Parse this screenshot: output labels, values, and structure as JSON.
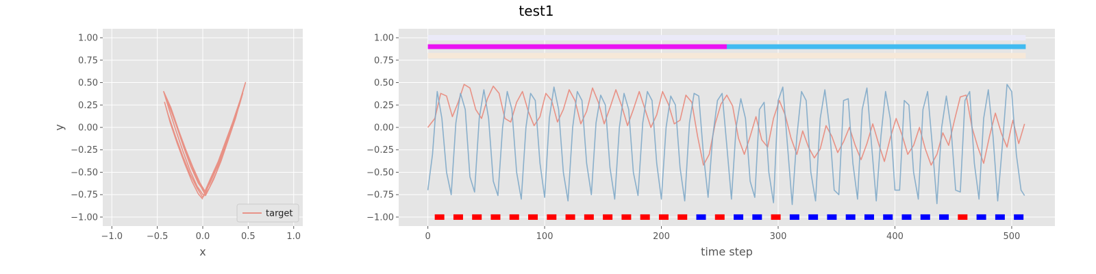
{
  "figure": {
    "title": "test1"
  },
  "chart_data": [
    {
      "type": "line",
      "title": "",
      "xlabel": "x",
      "ylabel": "y",
      "xlim": [
        -1.1,
        1.1
      ],
      "ylim": [
        -1.1,
        1.1
      ],
      "xticks": [
        -1.0,
        -0.5,
        0.0,
        0.5,
        1.0
      ],
      "yticks": [
        -1.0,
        -0.75,
        -0.5,
        -0.25,
        0.0,
        0.25,
        0.5,
        0.75,
        1.0
      ],
      "xtick_labels": [
        "−1.0",
        "−0.5",
        "0.0",
        "0.5",
        "1.0"
      ],
      "ytick_labels": [
        "−1.00",
        "−0.75",
        "−0.50",
        "−0.25",
        "0.00",
        "0.25",
        "0.50",
        "0.75",
        "1.00"
      ],
      "grid": true,
      "legend": {
        "placement": "bottom-right",
        "entries": [
          "target"
        ]
      },
      "series": [
        {
          "name": "target",
          "color": "#e8877a",
          "x": [
            0.0,
            -0.05,
            -0.12,
            -0.2,
            -0.28,
            -0.36,
            -0.42,
            -0.38,
            -0.3,
            -0.22,
            -0.14,
            -0.06,
            0.0,
            0.07,
            0.15,
            0.23,
            0.31,
            0.38,
            0.44,
            0.4,
            0.32,
            0.24,
            0.16,
            0.08,
            0.01,
            -0.06,
            -0.14,
            -0.22,
            -0.3,
            -0.37,
            -0.43,
            -0.35,
            -0.27,
            -0.19,
            -0.11,
            -0.03,
            0.04,
            0.12,
            0.2,
            0.28,
            0.36,
            0.42,
            0.47,
            0.41,
            0.33,
            0.25,
            0.17,
            0.09,
            0.02,
            -0.05,
            -0.13,
            -0.21,
            -0.29,
            -0.36,
            -0.41,
            -0.34,
            -0.26,
            -0.18,
            -0.1,
            -0.03,
            0.03,
            0.11,
            0.19,
            0.27,
            0.35,
            0.41,
            0.38,
            0.3,
            0.22,
            0.14,
            0.06
          ],
          "y": [
            -0.8,
            -0.74,
            -0.6,
            -0.4,
            -0.18,
            0.06,
            0.28,
            0.14,
            -0.1,
            -0.32,
            -0.52,
            -0.68,
            -0.78,
            -0.68,
            -0.5,
            -0.28,
            -0.04,
            0.2,
            0.38,
            0.24,
            0.0,
            -0.22,
            -0.44,
            -0.62,
            -0.76,
            -0.66,
            -0.48,
            -0.26,
            -0.02,
            0.2,
            0.4,
            0.22,
            -0.02,
            -0.24,
            -0.44,
            -0.62,
            -0.74,
            -0.58,
            -0.38,
            -0.14,
            0.1,
            0.32,
            0.5,
            0.3,
            0.06,
            -0.16,
            -0.38,
            -0.56,
            -0.72,
            -0.62,
            -0.44,
            -0.22,
            0.02,
            0.22,
            0.34,
            0.16,
            -0.06,
            -0.28,
            -0.48,
            -0.64,
            -0.76,
            -0.6,
            -0.4,
            -0.16,
            0.08,
            0.3,
            0.2,
            -0.04,
            -0.26,
            -0.46,
            -0.64
          ]
        }
      ]
    },
    {
      "type": "line",
      "title": "",
      "xlabel": "time step",
      "ylabel": "",
      "xlim": [
        -25,
        537
      ],
      "ylim": [
        -1.1,
        1.1
      ],
      "xticks": [
        0,
        100,
        200,
        300,
        400,
        500
      ],
      "yticks": [
        -1.0,
        -0.75,
        -0.5,
        -0.25,
        0.0,
        0.25,
        0.5,
        0.75,
        1.0
      ],
      "xtick_labels": [
        "0",
        "100",
        "200",
        "300",
        "400",
        "500"
      ],
      "ytick_labels": [
        "−1.00",
        "−0.75",
        "−0.50",
        "−0.25",
        "0.00",
        "0.25",
        "0.50",
        "0.75",
        "1.00"
      ],
      "grid": true,
      "background_bands": [
        {
          "y": 1.0,
          "x_range": [
            0,
            512
          ],
          "color": "#ebeaf8"
        },
        {
          "y": 0.8,
          "x_range": [
            0,
            512
          ],
          "color": "#f6e8d8"
        }
      ],
      "phase_bar": {
        "y": 0.9,
        "segments": [
          {
            "x_range": [
              0,
              256
            ],
            "color": "#ea13f2"
          },
          {
            "x_range": [
              256,
              512
            ],
            "color": "#41bbf1"
          }
        ]
      },
      "markers": {
        "y": -1.0,
        "x": [
          10,
          26,
          42,
          58,
          74,
          90,
          106,
          122,
          138,
          154,
          170,
          186,
          202,
          218,
          234,
          250,
          266,
          282,
          298,
          314,
          330,
          346,
          362,
          378,
          394,
          410,
          426,
          442,
          458,
          474,
          490,
          506
        ],
        "colors": [
          "#ff0000",
          "#ff0000",
          "#ff0000",
          "#ff0000",
          "#ff0000",
          "#ff0000",
          "#ff0000",
          "#ff0000",
          "#ff0000",
          "#ff0000",
          "#ff0000",
          "#ff0000",
          "#ff0000",
          "#ff0000",
          "#0000ff",
          "#ff0000",
          "#0000ff",
          "#0000ff",
          "#ff0000",
          "#0000ff",
          "#0000ff",
          "#0000ff",
          "#0000ff",
          "#0000ff",
          "#0000ff",
          "#0000ff",
          "#0000ff",
          "#0000ff",
          "#ff0000",
          "#0000ff",
          "#0000ff",
          "#0000ff"
        ]
      },
      "series": [
        {
          "name": "",
          "color": "#e8877a",
          "x": [
            0,
            6,
            11,
            16,
            21,
            26,
            31,
            36,
            41,
            46,
            51,
            56,
            61,
            66,
            71,
            76,
            81,
            86,
            91,
            96,
            101,
            106,
            111,
            116,
            121,
            126,
            131,
            136,
            141,
            146,
            151,
            156,
            161,
            166,
            171,
            176,
            181,
            186,
            191,
            196,
            201,
            206,
            211,
            216,
            221,
            226,
            231,
            236,
            241,
            246,
            251,
            256,
            261,
            266,
            271,
            276,
            281,
            286,
            291,
            296,
            301,
            306,
            311,
            316,
            321,
            326,
            331,
            336,
            341,
            346,
            351,
            356,
            361,
            366,
            371,
            376,
            381,
            386,
            391,
            396,
            401,
            406,
            411,
            416,
            421,
            426,
            431,
            436,
            441,
            446,
            451,
            456,
            461,
            466,
            471,
            476,
            481,
            486,
            491,
            496,
            501,
            506,
            511
          ],
          "y": [
            0.0,
            0.1,
            0.38,
            0.35,
            0.12,
            0.28,
            0.48,
            0.44,
            0.2,
            0.1,
            0.32,
            0.46,
            0.38,
            0.1,
            0.06,
            0.28,
            0.4,
            0.18,
            0.02,
            0.12,
            0.38,
            0.3,
            0.06,
            0.2,
            0.42,
            0.3,
            0.04,
            0.18,
            0.44,
            0.28,
            0.04,
            0.22,
            0.42,
            0.24,
            0.02,
            0.2,
            0.4,
            0.2,
            0.0,
            0.14,
            0.4,
            0.26,
            0.04,
            0.08,
            0.36,
            0.28,
            -0.1,
            -0.42,
            -0.3,
            0.04,
            0.26,
            0.36,
            0.24,
            -0.12,
            -0.3,
            -0.1,
            0.12,
            -0.14,
            -0.22,
            0.1,
            0.3,
            0.14,
            -0.12,
            -0.3,
            -0.04,
            -0.22,
            -0.34,
            -0.24,
            0.02,
            -0.1,
            -0.28,
            -0.16,
            0.0,
            -0.2,
            -0.36,
            -0.18,
            0.04,
            -0.18,
            -0.38,
            -0.12,
            0.1,
            -0.08,
            -0.3,
            -0.2,
            0.0,
            -0.24,
            -0.42,
            -0.3,
            -0.06,
            -0.2,
            0.08,
            0.34,
            0.36,
            0.0,
            -0.22,
            -0.4,
            -0.1,
            0.16,
            -0.06,
            -0.22,
            0.08,
            -0.18,
            0.04
          ]
        },
        {
          "name": "",
          "color": "#7ea8c8",
          "x": [
            0,
            4,
            8,
            12,
            16,
            20,
            24,
            28,
            32,
            36,
            40,
            44,
            48,
            52,
            56,
            60,
            64,
            68,
            72,
            76,
            80,
            84,
            88,
            92,
            96,
            100,
            104,
            108,
            112,
            116,
            120,
            124,
            128,
            132,
            136,
            140,
            144,
            148,
            152,
            156,
            160,
            164,
            168,
            172,
            176,
            180,
            184,
            188,
            192,
            196,
            200,
            204,
            208,
            212,
            216,
            220,
            224,
            228,
            232,
            236,
            240,
            244,
            248,
            252,
            256,
            260,
            264,
            268,
            272,
            276,
            280,
            284,
            288,
            292,
            296,
            300,
            304,
            308,
            312,
            316,
            320,
            324,
            328,
            332,
            336,
            340,
            344,
            348,
            352,
            356,
            360,
            364,
            368,
            372,
            376,
            380,
            384,
            388,
            392,
            396,
            400,
            404,
            408,
            412,
            416,
            420,
            424,
            428,
            432,
            436,
            440,
            444,
            448,
            452,
            456,
            460,
            464,
            468,
            472,
            476,
            480,
            484,
            488,
            492,
            496,
            500,
            504,
            508,
            511
          ],
          "y": [
            -0.7,
            -0.3,
            0.4,
            0.1,
            -0.5,
            -0.75,
            0.05,
            0.38,
            0.2,
            -0.55,
            -0.72,
            0.1,
            0.42,
            0.1,
            -0.6,
            -0.76,
            0.0,
            0.4,
            0.2,
            -0.5,
            -0.8,
            0.0,
            0.38,
            0.3,
            -0.4,
            -0.78,
            0.1,
            0.45,
            0.2,
            -0.5,
            -0.82,
            0.0,
            0.4,
            0.3,
            -0.4,
            -0.75,
            0.05,
            0.36,
            0.25,
            -0.45,
            -0.8,
            0.0,
            0.38,
            0.2,
            -0.5,
            -0.76,
            0.05,
            0.4,
            0.3,
            -0.4,
            -0.8,
            0.0,
            0.35,
            0.25,
            -0.45,
            -0.82,
            0.05,
            0.38,
            0.35,
            -0.3,
            -0.78,
            -0.1,
            0.3,
            0.38,
            -0.2,
            -0.8,
            0.0,
            0.32,
            0.1,
            -0.6,
            -0.78,
            0.2,
            0.28,
            -0.5,
            -0.84,
            0.3,
            0.45,
            -0.2,
            -0.86,
            -0.1,
            0.4,
            0.3,
            -0.5,
            -0.82,
            0.1,
            0.42,
            0.0,
            -0.7,
            -0.75,
            0.3,
            0.32,
            -0.4,
            -0.8,
            0.2,
            0.44,
            -0.2,
            -0.82,
            -0.1,
            0.4,
            0.1,
            -0.7,
            -0.7,
            0.3,
            0.25,
            -0.5,
            -0.8,
            0.2,
            0.4,
            -0.2,
            -0.85,
            0.0,
            0.35,
            0.0,
            -0.7,
            -0.72,
            0.3,
            0.4,
            -0.4,
            -0.8,
            0.1,
            0.42,
            -0.1,
            -0.82,
            -0.2,
            0.48,
            0.4,
            -0.3,
            -0.7,
            -0.76
          ]
        }
      ]
    }
  ]
}
